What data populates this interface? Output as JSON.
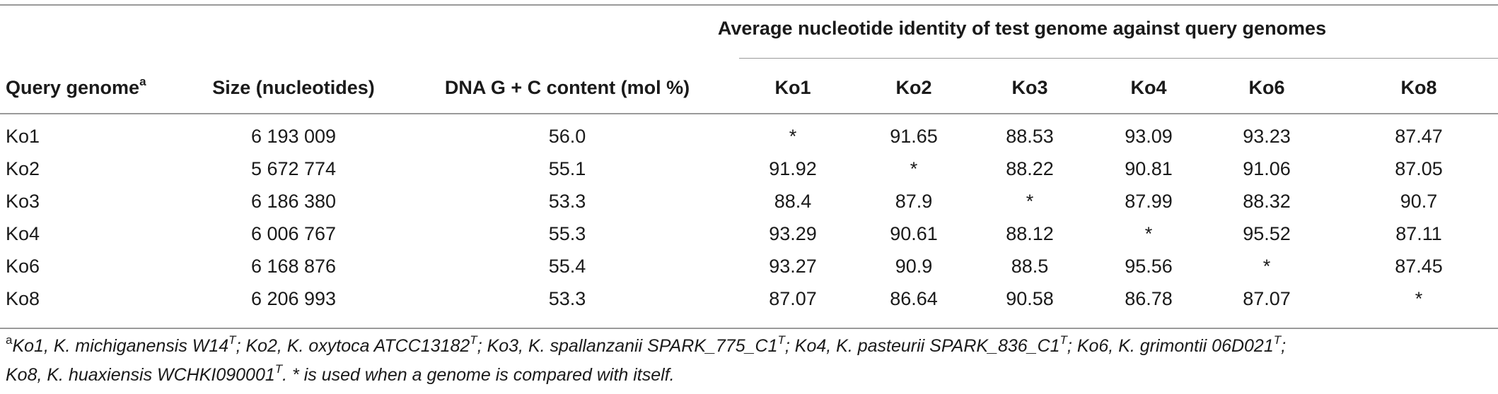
{
  "table": {
    "group_header": "Average nucleotide identity of test genome against query genomes",
    "col_query": "Query genome",
    "col_query_sup": "a",
    "col_size": "Size (nucleotides)",
    "col_gc": "DNA G + C content (mol %)",
    "ani_cols": [
      "Ko1",
      "Ko2",
      "Ko3",
      "Ko4",
      "Ko6",
      "Ko8"
    ],
    "rows": [
      {
        "genome": "Ko1",
        "size": "6 193 009",
        "gc": "56.0",
        "ani": [
          "*",
          "91.65",
          "88.53",
          "93.09",
          "93.23",
          "87.47"
        ]
      },
      {
        "genome": "Ko2",
        "size": "5 672 774",
        "gc": "55.1",
        "ani": [
          "91.92",
          "*",
          "88.22",
          "90.81",
          "91.06",
          "87.05"
        ]
      },
      {
        "genome": "Ko3",
        "size": "6 186 380",
        "gc": "53.3",
        "ani": [
          "88.4",
          "87.9",
          "*",
          "87.99",
          "88.32",
          "90.7"
        ]
      },
      {
        "genome": "Ko4",
        "size": "6 006 767",
        "gc": "55.3",
        "ani": [
          "93.29",
          "90.61",
          "88.12",
          "*",
          "95.52",
          "87.11"
        ]
      },
      {
        "genome": "Ko6",
        "size": "6 168 876",
        "gc": "55.4",
        "ani": [
          "93.27",
          "90.9",
          "88.5",
          "95.56",
          "*",
          "87.45"
        ]
      },
      {
        "genome": "Ko8",
        "size": "6 206 993",
        "gc": "53.3",
        "ani": [
          "87.07",
          "86.64",
          "90.58",
          "86.78",
          "87.07",
          "*"
        ]
      }
    ]
  },
  "footnote": {
    "mark": "a",
    "line1": [
      {
        "t": "Ko1, K. michiganensis W14"
      },
      {
        "sup": "T"
      },
      {
        "t": "; Ko2, K. oxytoca ATCC13182"
      },
      {
        "sup": "T"
      },
      {
        "t": "; Ko3, K. spallanzanii SPARK_775_C1"
      },
      {
        "sup": "T"
      },
      {
        "t": "; Ko4, K. pasteurii SPARK_836_C1"
      },
      {
        "sup": "T"
      },
      {
        "t": "; Ko6, K. grimontii 06D021"
      },
      {
        "sup": "T"
      },
      {
        "t": ";"
      }
    ],
    "line2": [
      {
        "t": "Ko8, K. huaxiensis WCHKI090001"
      },
      {
        "sup": "T"
      },
      {
        "t": ". * is used when a genome is compared with itself."
      }
    ]
  }
}
